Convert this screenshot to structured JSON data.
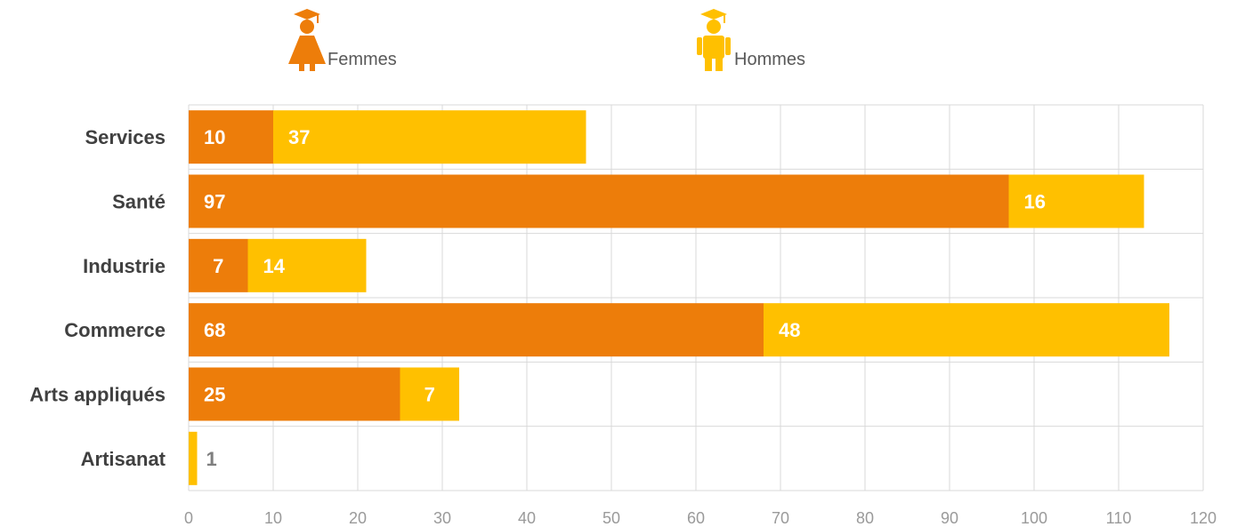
{
  "legend": {
    "femmes_label": "Femmes",
    "hommes_label": "Hommes"
  },
  "chart_data": {
    "type": "bar",
    "orientation": "horizontal",
    "stacked": true,
    "title": "",
    "xlabel": "",
    "ylabel": "",
    "categories": [
      "Services",
      "Santé",
      "Industrie",
      "Commerce",
      "Arts appliqués",
      "Artisanat"
    ],
    "series": [
      {
        "name": "Femmes",
        "color": "#ED7D0A",
        "values": [
          10,
          97,
          7,
          68,
          25,
          0
        ]
      },
      {
        "name": "Hommes",
        "color": "#FFC000",
        "values": [
          37,
          16,
          14,
          48,
          7,
          1
        ]
      }
    ],
    "data_labels": [
      [
        "10",
        "37"
      ],
      [
        "97",
        "16"
      ],
      [
        "7",
        "14"
      ],
      [
        "68",
        "48"
      ],
      [
        "25",
        "7"
      ],
      [
        "",
        "1"
      ]
    ],
    "xlim": [
      0,
      120
    ],
    "xticks": [
      0,
      10,
      20,
      30,
      40,
      50,
      60,
      70,
      80,
      90,
      100,
      110,
      120
    ],
    "grid": true,
    "legend_position": "top"
  }
}
